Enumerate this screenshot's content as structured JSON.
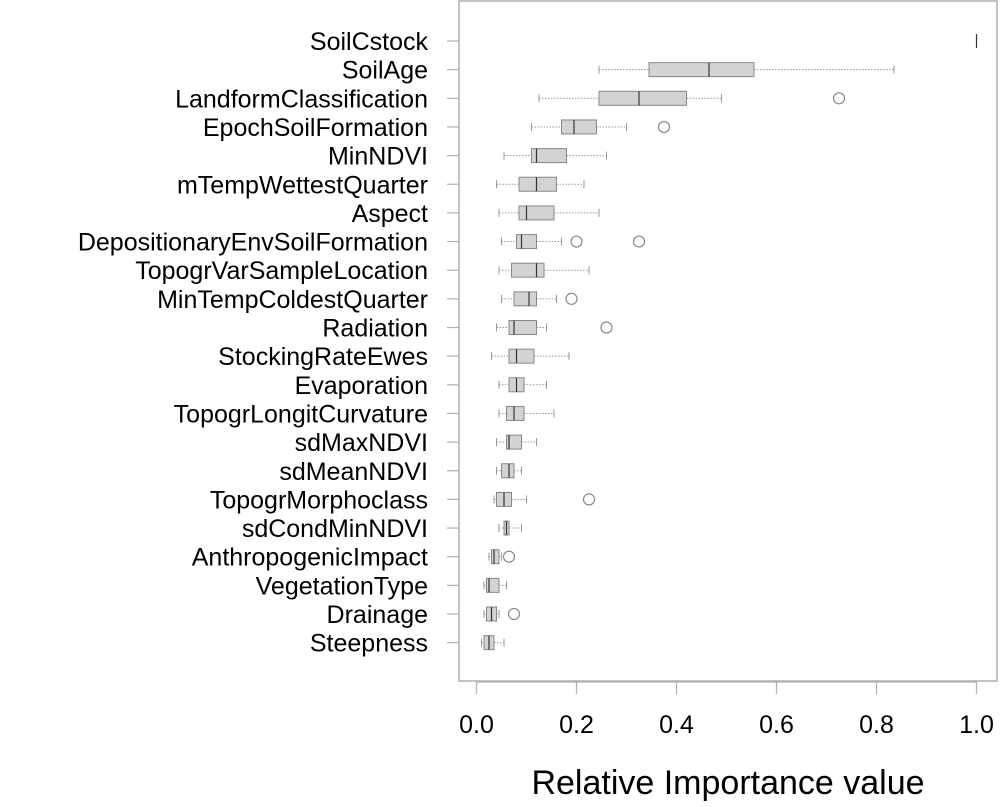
{
  "chart_data": {
    "type": "boxplot",
    "orientation": "horizontal",
    "xlabel": "Relative Importance value",
    "xlim": [
      -0.03,
      1.03
    ],
    "xticks": [
      0.0,
      0.2,
      0.4,
      0.6,
      0.8,
      1.0
    ],
    "xtick_labels": [
      "0.0",
      "0.2",
      "0.4",
      "0.6",
      "0.8",
      "1.0"
    ],
    "grid": false,
    "colors": {
      "box_fill": "#d3d3d3",
      "box_stroke": "#888888",
      "whisker": "#999999",
      "median": "#333333",
      "outlier": "#888888"
    },
    "categories": [
      {
        "name": "SoilCstock",
        "whisker_low": 1.0,
        "q1": 1.0,
        "median": 1.0,
        "q3": 1.0,
        "whisker_high": 1.0,
        "outliers": []
      },
      {
        "name": "SoilAge",
        "whisker_low": 0.245,
        "q1": 0.345,
        "median": 0.465,
        "q3": 0.555,
        "whisker_high": 0.835,
        "outliers": []
      },
      {
        "name": "LandformClassification",
        "whisker_low": 0.125,
        "q1": 0.245,
        "median": 0.325,
        "q3": 0.42,
        "whisker_high": 0.49,
        "outliers": [
          0.725
        ]
      },
      {
        "name": "EpochSoilFormation",
        "whisker_low": 0.11,
        "q1": 0.17,
        "median": 0.195,
        "q3": 0.24,
        "whisker_high": 0.3,
        "outliers": [
          0.375
        ]
      },
      {
        "name": "MinNDVI",
        "whisker_low": 0.055,
        "q1": 0.11,
        "median": 0.12,
        "q3": 0.18,
        "whisker_high": 0.26,
        "outliers": []
      },
      {
        "name": "mTempWettestQuarter",
        "whisker_low": 0.04,
        "q1": 0.085,
        "median": 0.12,
        "q3": 0.16,
        "whisker_high": 0.215,
        "outliers": []
      },
      {
        "name": "Aspect",
        "whisker_low": 0.045,
        "q1": 0.085,
        "median": 0.1,
        "q3": 0.155,
        "whisker_high": 0.245,
        "outliers": []
      },
      {
        "name": "DepositionaryEnvSoilFormation",
        "whisker_low": 0.05,
        "q1": 0.08,
        "median": 0.09,
        "q3": 0.12,
        "whisker_high": 0.17,
        "outliers": [
          0.2,
          0.325
        ]
      },
      {
        "name": "TopogrVarSampleLocation",
        "whisker_low": 0.045,
        "q1": 0.07,
        "median": 0.12,
        "q3": 0.135,
        "whisker_high": 0.225,
        "outliers": []
      },
      {
        "name": "MinTempColdestQuarter",
        "whisker_low": 0.05,
        "q1": 0.075,
        "median": 0.105,
        "q3": 0.12,
        "whisker_high": 0.16,
        "outliers": [
          0.19
        ]
      },
      {
        "name": "Radiation",
        "whisker_low": 0.04,
        "q1": 0.065,
        "median": 0.075,
        "q3": 0.12,
        "whisker_high": 0.14,
        "outliers": [
          0.26
        ]
      },
      {
        "name": "StockingRateEwes",
        "whisker_low": 0.03,
        "q1": 0.065,
        "median": 0.08,
        "q3": 0.115,
        "whisker_high": 0.185,
        "outliers": []
      },
      {
        "name": "Evaporation",
        "whisker_low": 0.045,
        "q1": 0.065,
        "median": 0.08,
        "q3": 0.095,
        "whisker_high": 0.14,
        "outliers": []
      },
      {
        "name": "TopogrLongitCurvature",
        "whisker_low": 0.045,
        "q1": 0.06,
        "median": 0.075,
        "q3": 0.095,
        "whisker_high": 0.155,
        "outliers": []
      },
      {
        "name": "sdMaxNDVI",
        "whisker_low": 0.04,
        "q1": 0.06,
        "median": 0.065,
        "q3": 0.09,
        "whisker_high": 0.12,
        "outliers": []
      },
      {
        "name": "sdMeanNDVI",
        "whisker_low": 0.04,
        "q1": 0.05,
        "median": 0.065,
        "q3": 0.075,
        "whisker_high": 0.09,
        "outliers": []
      },
      {
        "name": "TopogrMorphoclass",
        "whisker_low": 0.035,
        "q1": 0.04,
        "median": 0.055,
        "q3": 0.07,
        "whisker_high": 0.1,
        "outliers": [
          0.225
        ]
      },
      {
        "name": "sdCondMinNDVI",
        "whisker_low": 0.045,
        "q1": 0.055,
        "median": 0.06,
        "q3": 0.065,
        "whisker_high": 0.09,
        "outliers": []
      },
      {
        "name": "AnthropogenicImpact",
        "whisker_low": 0.025,
        "q1": 0.03,
        "median": 0.035,
        "q3": 0.045,
        "whisker_high": 0.05,
        "outliers": [
          0.065
        ]
      },
      {
        "name": "VegetationType",
        "whisker_low": 0.015,
        "q1": 0.02,
        "median": 0.025,
        "q3": 0.045,
        "whisker_high": 0.06,
        "outliers": []
      },
      {
        "name": "Drainage",
        "whisker_low": 0.015,
        "q1": 0.02,
        "median": 0.03,
        "q3": 0.04,
        "whisker_high": 0.045,
        "outliers": [
          0.075
        ]
      },
      {
        "name": "Steepness",
        "whisker_low": 0.01,
        "q1": 0.015,
        "median": 0.025,
        "q3": 0.035,
        "whisker_high": 0.055,
        "outliers": []
      }
    ]
  }
}
